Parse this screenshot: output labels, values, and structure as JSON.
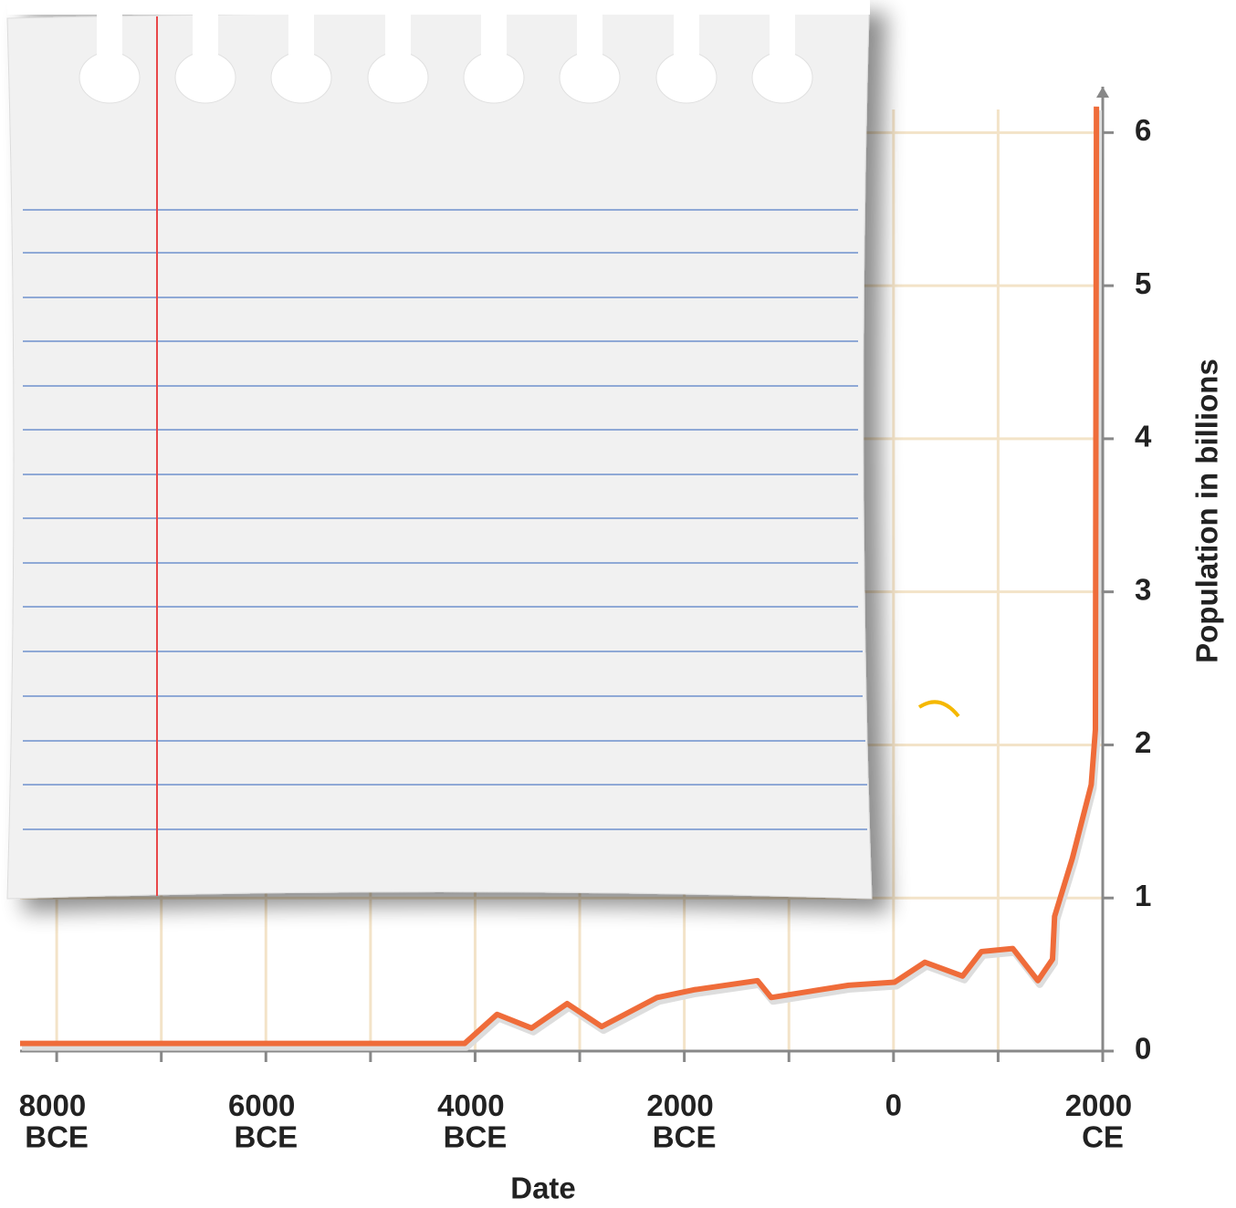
{
  "chart_data": {
    "type": "line",
    "xlabel": "Date",
    "ylabel": "Population in billions",
    "xlim": [
      -8350,
      2000
    ],
    "ylim": [
      0,
      6.3
    ],
    "xticks": [
      {
        "value": -8000,
        "label": "8000 BCE"
      },
      {
        "value": -6000,
        "label": "6000 BCE"
      },
      {
        "value": -4000,
        "label": "4000 BCE"
      },
      {
        "value": -2000,
        "label": "2000 BCE"
      },
      0,
      {
        "value": 2000,
        "label": "2000 CE"
      }
    ],
    "xminor": [
      -7000,
      -5000,
      -3000,
      -1000,
      1000
    ],
    "yticks": [
      0,
      1,
      2,
      3,
      4,
      5,
      6
    ],
    "grid": true,
    "grid_color": "#f3e3c8",
    "series": [
      {
        "color": "#ef6c3a",
        "x": [
          -8350,
          -4100,
          -3790,
          -3460,
          -3120,
          -2790,
          -2260,
          -1910,
          -1300,
          -1170,
          -430,
          10,
          300,
          660,
          840,
          1140,
          1380,
          1520,
          1540,
          1710,
          1890,
          1930,
          1940
        ],
        "values": [
          0.05,
          0.05,
          0.24,
          0.15,
          0.31,
          0.16,
          0.35,
          0.4,
          0.46,
          0.35,
          0.43,
          0.45,
          0.58,
          0.49,
          0.65,
          0.67,
          0.46,
          0.6,
          0.88,
          1.26,
          1.74,
          2.1,
          6.17
        ]
      }
    ]
  }
}
